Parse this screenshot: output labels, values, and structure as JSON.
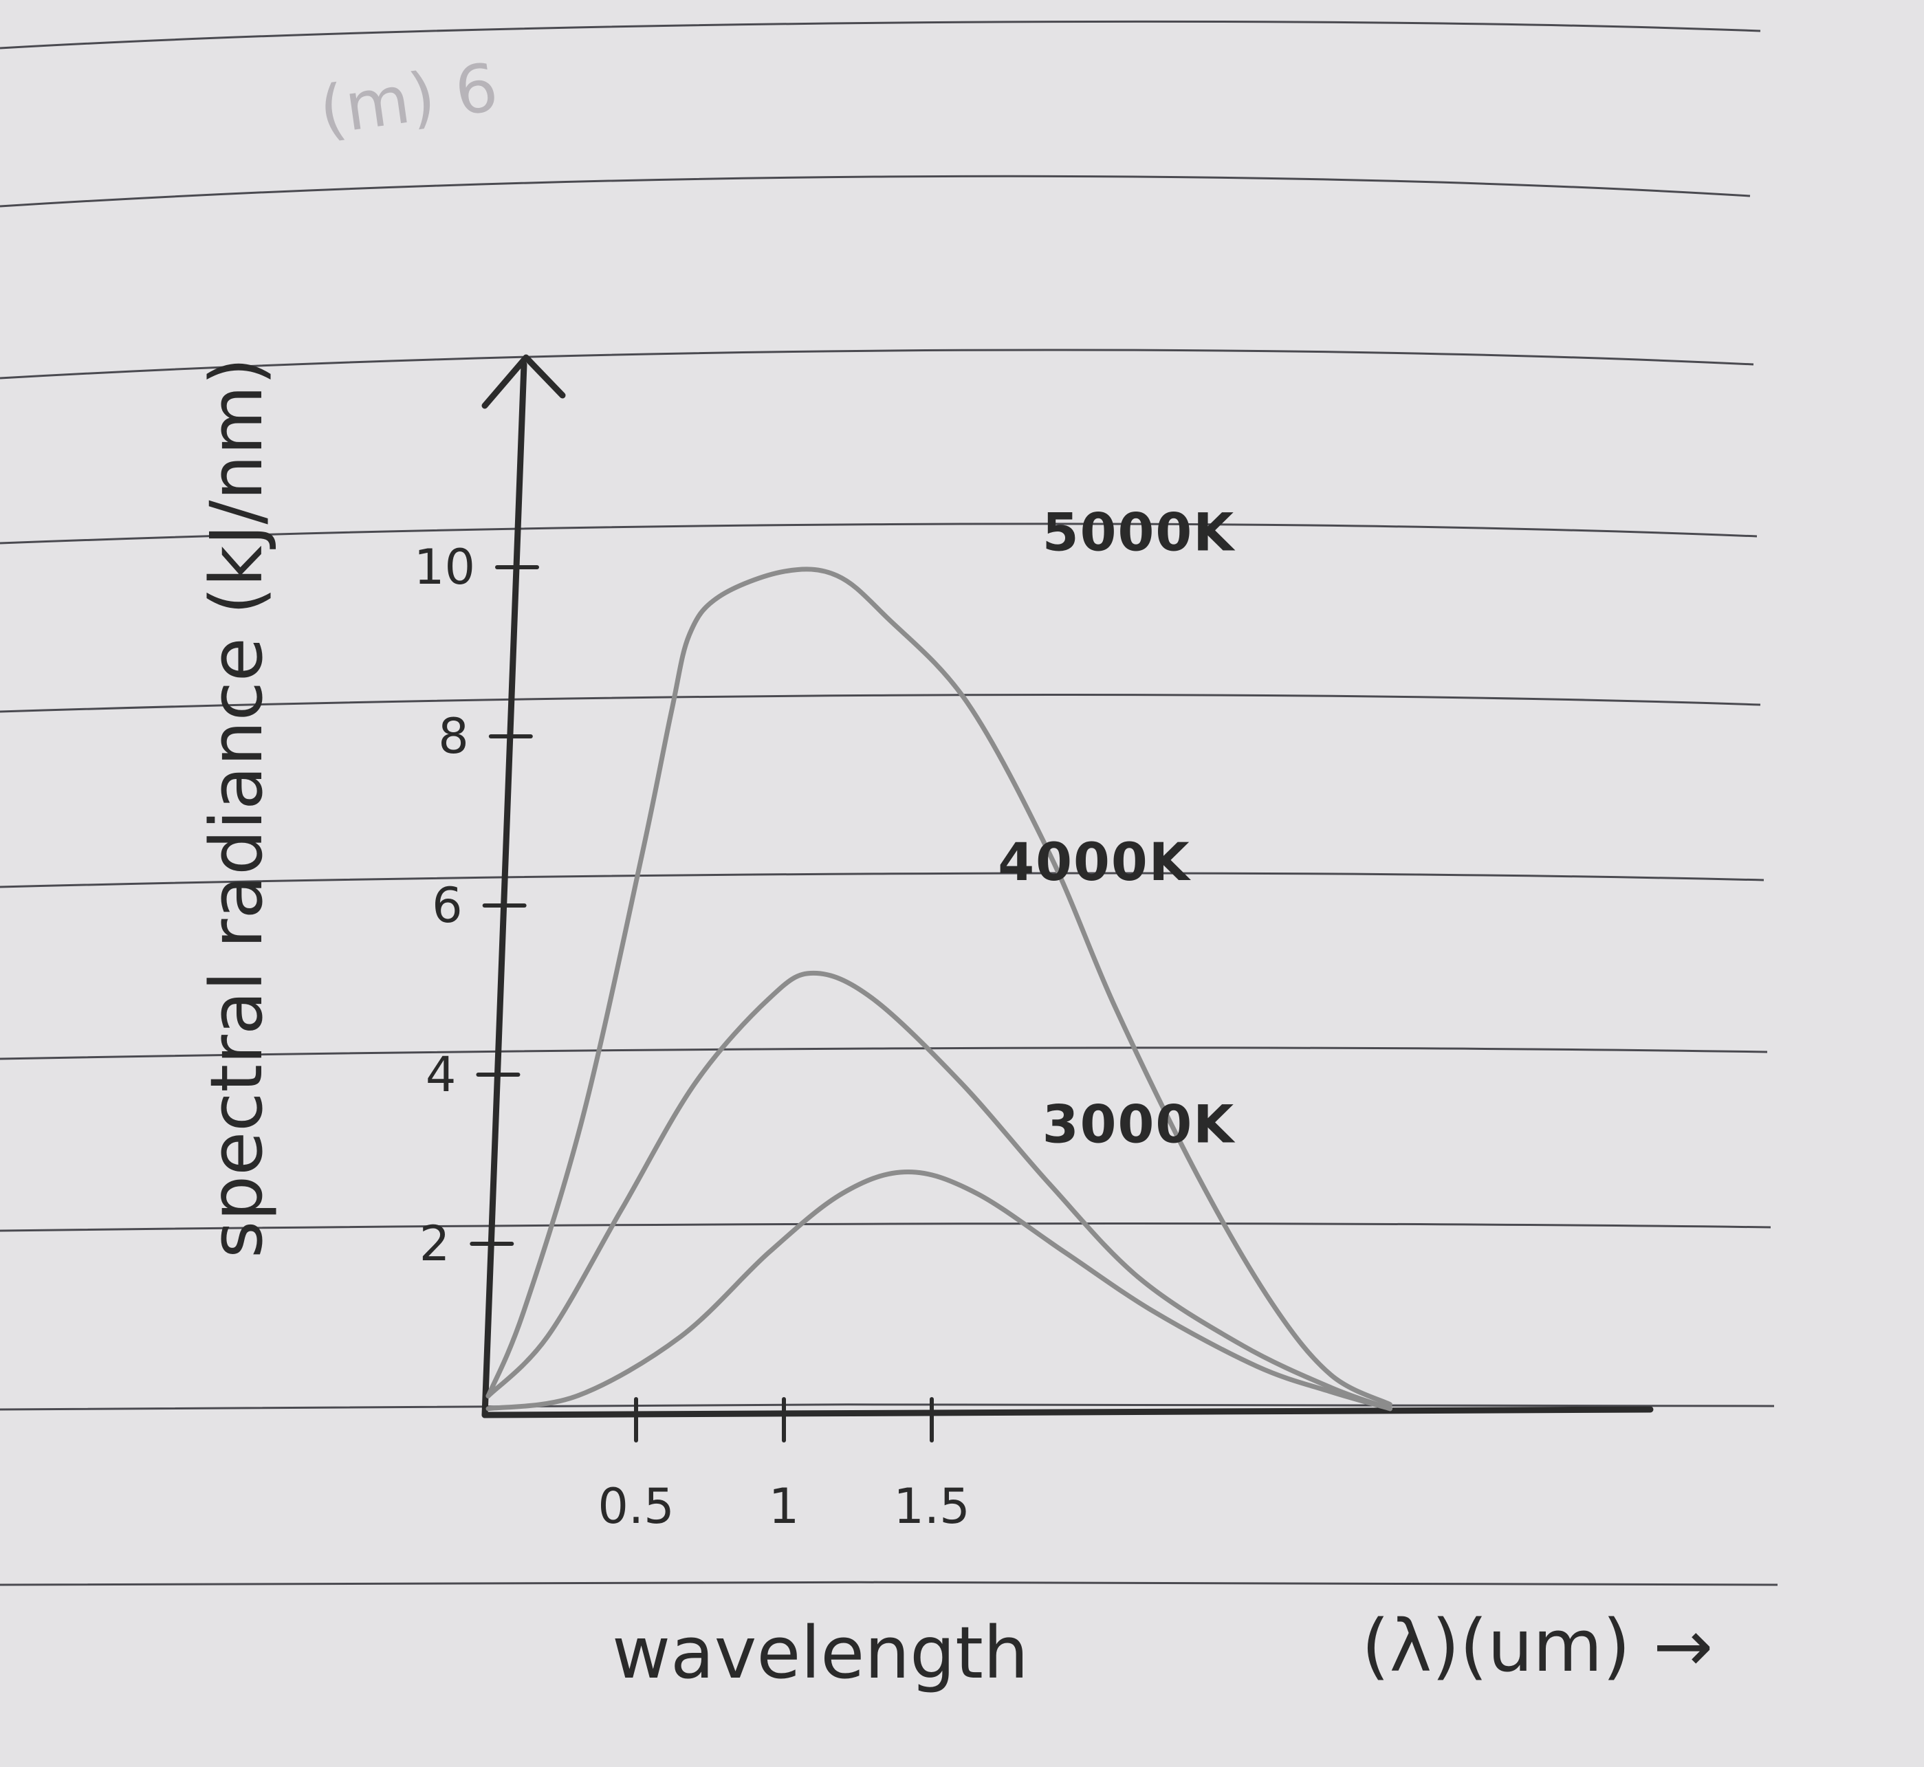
{
  "chart_data": {
    "type": "line",
    "title": "",
    "xlabel": "wavelength",
    "xlabel_unit": "(λ)(um) →",
    "ylabel": "spectral radiance (kJ/nm)",
    "corner_note": "(m) 6",
    "x_ticks": [
      {
        "value": 0.5,
        "label": "0.5"
      },
      {
        "value": 1.0,
        "label": "1"
      },
      {
        "value": 1.5,
        "label": "1.5"
      }
    ],
    "y_ticks": [
      {
        "value": 2,
        "label": "2"
      },
      {
        "value": 4,
        "label": "4"
      },
      {
        "value": 6,
        "label": "6"
      },
      {
        "value": 8,
        "label": "8"
      },
      {
        "value": 10,
        "label": "10"
      }
    ],
    "xlim": [
      0,
      3.4
    ],
    "ylim": [
      0,
      12.5
    ],
    "grid": false,
    "legend": "labels next to curves",
    "series": [
      {
        "name": "5000K",
        "color": "#8c8c8c",
        "points": [
          [
            0,
            0.2
          ],
          [
            0.12,
            1.2
          ],
          [
            0.32,
            3.5
          ],
          [
            0.52,
            6.6
          ],
          [
            0.62,
            8.3
          ],
          [
            0.68,
            9.2
          ],
          [
            0.78,
            9.65
          ],
          [
            1.0,
            9.95
          ],
          [
            1.18,
            9.9
          ],
          [
            1.35,
            9.4
          ],
          [
            1.62,
            8.4
          ],
          [
            1.9,
            6.6
          ],
          [
            2.12,
            4.8
          ],
          [
            2.4,
            2.8
          ],
          [
            2.65,
            1.3
          ],
          [
            2.85,
            0.45
          ],
          [
            3.05,
            0.1
          ]
        ]
      },
      {
        "name": "4000K",
        "color": "#8c8c8c",
        "points": [
          [
            0,
            0.2
          ],
          [
            0.2,
            0.9
          ],
          [
            0.45,
            2.4
          ],
          [
            0.7,
            3.9
          ],
          [
            0.95,
            4.9
          ],
          [
            1.1,
            5.2
          ],
          [
            1.3,
            4.9
          ],
          [
            1.6,
            3.9
          ],
          [
            1.9,
            2.7
          ],
          [
            2.2,
            1.6
          ],
          [
            2.55,
            0.8
          ],
          [
            2.85,
            0.3
          ],
          [
            3.05,
            0.05
          ]
        ]
      },
      {
        "name": "3000K",
        "color": "#8c8c8c",
        "points": [
          [
            0,
            0.05
          ],
          [
            0.3,
            0.2
          ],
          [
            0.65,
            0.9
          ],
          [
            0.95,
            1.9
          ],
          [
            1.2,
            2.6
          ],
          [
            1.42,
            2.85
          ],
          [
            1.65,
            2.6
          ],
          [
            1.95,
            1.9
          ],
          [
            2.25,
            1.2
          ],
          [
            2.6,
            0.55
          ],
          [
            2.85,
            0.25
          ],
          [
            3.05,
            0.05
          ]
        ]
      }
    ]
  }
}
